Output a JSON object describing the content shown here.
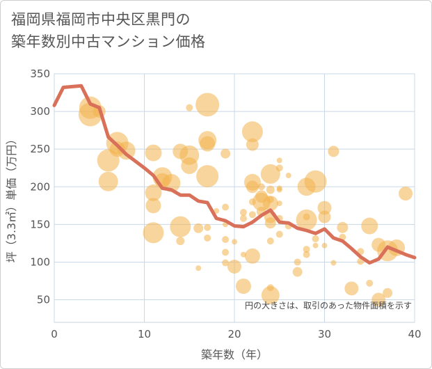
{
  "header": {
    "title_line1": "福岡県福岡市中央区黒門の",
    "title_line2": "築年数別中古マンション価格"
  },
  "chart_data": {
    "type": "scatter",
    "title": "福岡県福岡市中央区黒門の築年数別中古マンション価格",
    "xlabel": "築年数（年）",
    "ylabel": "坪（3.3㎡）単価（万円）",
    "xlim": [
      0,
      40
    ],
    "ylim": [
      20,
      350
    ],
    "x_ticks": [
      0,
      10,
      20,
      30,
      40
    ],
    "y_ticks": [
      50,
      100,
      150,
      200,
      250,
      300,
      350
    ],
    "grid": true,
    "note": "円の大きさは、取引のあった物件面積を示す",
    "bubble_color": "#f2b24c",
    "line_color": "#d9705a",
    "trend_line": {
      "x": [
        0,
        1,
        2,
        3,
        4,
        5,
        6,
        7,
        8,
        9,
        10,
        11,
        12,
        13,
        14,
        15,
        16,
        17,
        18,
        19,
        20,
        21,
        22,
        23,
        24,
        25,
        26,
        27,
        28,
        29,
        30,
        31,
        32,
        33,
        34,
        35,
        36,
        37,
        38,
        39,
        40
      ],
      "y": [
        308,
        332,
        333,
        334,
        310,
        305,
        266,
        255,
        243,
        234,
        225,
        215,
        198,
        196,
        189,
        189,
        181,
        179,
        158,
        155,
        148,
        147,
        153,
        162,
        169,
        153,
        152,
        145,
        142,
        138,
        144,
        132,
        128,
        118,
        107,
        99,
        104,
        120,
        115,
        110,
        106
      ]
    },
    "points": [
      {
        "x": 4,
        "y": 305,
        "s": 16
      },
      {
        "x": 4,
        "y": 296,
        "s": 17
      },
      {
        "x": 5,
        "y": 300,
        "s": 9
      },
      {
        "x": 7,
        "y": 258,
        "s": 16
      },
      {
        "x": 7,
        "y": 250,
        "s": 11
      },
      {
        "x": 8,
        "y": 248,
        "s": 13
      },
      {
        "x": 6,
        "y": 235,
        "s": 16
      },
      {
        "x": 6,
        "y": 207,
        "s": 14
      },
      {
        "x": 11,
        "y": 245,
        "s": 12
      },
      {
        "x": 12,
        "y": 213,
        "s": 14
      },
      {
        "x": 12,
        "y": 208,
        "s": 11
      },
      {
        "x": 11,
        "y": 192,
        "s": 12
      },
      {
        "x": 11,
        "y": 175,
        "s": 11
      },
      {
        "x": 11,
        "y": 139,
        "s": 15
      },
      {
        "x": 13,
        "y": 205,
        "s": 13
      },
      {
        "x": 14,
        "y": 247,
        "s": 11
      },
      {
        "x": 15,
        "y": 242,
        "s": 14
      },
      {
        "x": 15,
        "y": 228,
        "s": 12
      },
      {
        "x": 14,
        "y": 147,
        "s": 15
      },
      {
        "x": 14,
        "y": 128,
        "s": 6
      },
      {
        "x": 15,
        "y": 305,
        "s": 5
      },
      {
        "x": 17,
        "y": 309,
        "s": 17
      },
      {
        "x": 17,
        "y": 262,
        "s": 13
      },
      {
        "x": 17,
        "y": 257,
        "s": 11
      },
      {
        "x": 17,
        "y": 214,
        "s": 16
      },
      {
        "x": 16,
        "y": 145,
        "s": 7
      },
      {
        "x": 17,
        "y": 146,
        "s": 5
      },
      {
        "x": 17,
        "y": 132,
        "s": 5
      },
      {
        "x": 16,
        "y": 92,
        "s": 4
      },
      {
        "x": 19,
        "y": 244,
        "s": 7
      },
      {
        "x": 19,
        "y": 173,
        "s": 5
      },
      {
        "x": 18,
        "y": 168,
        "s": 4
      },
      {
        "x": 19,
        "y": 150,
        "s": 4
      },
      {
        "x": 19,
        "y": 130,
        "s": 5
      },
      {
        "x": 19,
        "y": 113,
        "s": 5
      },
      {
        "x": 19,
        "y": 99,
        "s": 5
      },
      {
        "x": 20,
        "y": 127,
        "s": 4
      },
      {
        "x": 20,
        "y": 94,
        "s": 10
      },
      {
        "x": 21,
        "y": 166,
        "s": 5
      },
      {
        "x": 21,
        "y": 158,
        "s": 5
      },
      {
        "x": 21,
        "y": 110,
        "s": 4
      },
      {
        "x": 21,
        "y": 68,
        "s": 11
      },
      {
        "x": 22,
        "y": 273,
        "s": 15
      },
      {
        "x": 22,
        "y": 256,
        "s": 9
      },
      {
        "x": 22,
        "y": 206,
        "s": 12
      },
      {
        "x": 22,
        "y": 200,
        "s": 9
      },
      {
        "x": 22,
        "y": 180,
        "s": 5
      },
      {
        "x": 22,
        "y": 163,
        "s": 5
      },
      {
        "x": 22,
        "y": 108,
        "s": 11
      },
      {
        "x": 23,
        "y": 200,
        "s": 5
      },
      {
        "x": 23,
        "y": 187,
        "s": 9
      },
      {
        "x": 23,
        "y": 180,
        "s": 13
      },
      {
        "x": 23,
        "y": 167,
        "s": 7
      },
      {
        "x": 24,
        "y": 217,
        "s": 14
      },
      {
        "x": 24,
        "y": 196,
        "s": 6
      },
      {
        "x": 24,
        "y": 183,
        "s": 5
      },
      {
        "x": 24,
        "y": 178,
        "s": 11
      },
      {
        "x": 24,
        "y": 160,
        "s": 9
      },
      {
        "x": 24,
        "y": 152,
        "s": 8
      },
      {
        "x": 24,
        "y": 128,
        "s": 5
      },
      {
        "x": 24,
        "y": 66,
        "s": 5
      },
      {
        "x": 24,
        "y": 56,
        "s": 13
      },
      {
        "x": 25,
        "y": 235,
        "s": 4
      },
      {
        "x": 25,
        "y": 225,
        "s": 5
      },
      {
        "x": 25,
        "y": 198,
        "s": 4
      },
      {
        "x": 25,
        "y": 196,
        "s": 4
      },
      {
        "x": 25,
        "y": 178,
        "s": 4
      },
      {
        "x": 25,
        "y": 158,
        "s": 5
      },
      {
        "x": 25,
        "y": 137,
        "s": 5
      },
      {
        "x": 26,
        "y": 215,
        "s": 4
      },
      {
        "x": 26,
        "y": 148,
        "s": 5
      },
      {
        "x": 27,
        "y": 87,
        "s": 7
      },
      {
        "x": 27,
        "y": 100,
        "s": 5
      },
      {
        "x": 28,
        "y": 200,
        "s": 13
      },
      {
        "x": 28,
        "y": 160,
        "s": 5
      },
      {
        "x": 28,
        "y": 156,
        "s": 15
      },
      {
        "x": 28,
        "y": 117,
        "s": 5
      },
      {
        "x": 28,
        "y": 110,
        "s": 5
      },
      {
        "x": 29,
        "y": 207,
        "s": 16
      },
      {
        "x": 29,
        "y": 131,
        "s": 5
      },
      {
        "x": 29,
        "y": 122,
        "s": 4
      },
      {
        "x": 30,
        "y": 172,
        "s": 10
      },
      {
        "x": 30,
        "y": 160,
        "s": 9
      },
      {
        "x": 30,
        "y": 122,
        "s": 4
      },
      {
        "x": 31,
        "y": 247,
        "s": 8
      },
      {
        "x": 31,
        "y": 99,
        "s": 4
      },
      {
        "x": 32,
        "y": 146,
        "s": 8
      },
      {
        "x": 32,
        "y": 133,
        "s": 5
      },
      {
        "x": 33,
        "y": 65,
        "s": 10
      },
      {
        "x": 34,
        "y": 114,
        "s": 5
      },
      {
        "x": 34,
        "y": 101,
        "s": 5
      },
      {
        "x": 35,
        "y": 148,
        "s": 12
      },
      {
        "x": 35,
        "y": 72,
        "s": 5
      },
      {
        "x": 36,
        "y": 123,
        "s": 10
      },
      {
        "x": 36,
        "y": 50,
        "s": 10
      },
      {
        "x": 37,
        "y": 115,
        "s": 15
      },
      {
        "x": 37,
        "y": 59,
        "s": 7
      },
      {
        "x": 38,
        "y": 119,
        "s": 12
      },
      {
        "x": 39,
        "y": 191,
        "s": 10
      }
    ]
  }
}
